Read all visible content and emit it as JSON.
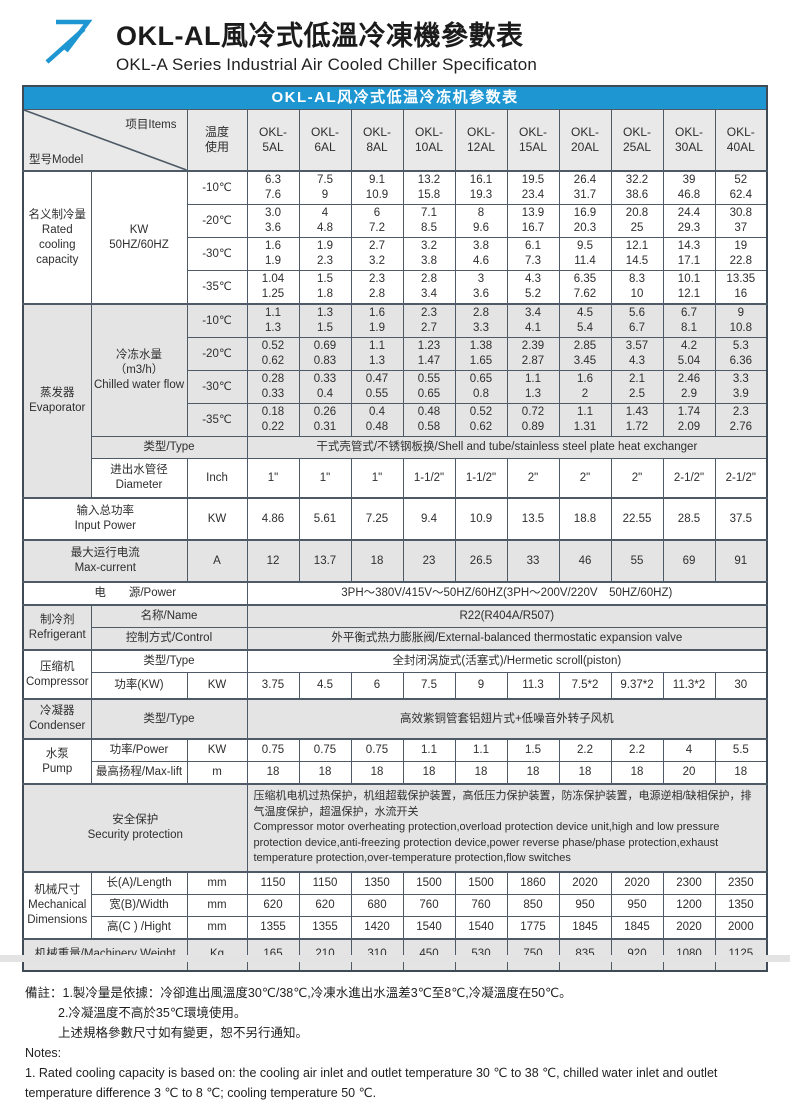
{
  "colors": {
    "accent_blue": "#1e96d2",
    "row_gray": "#e4e4e4",
    "border": "#4e5a66"
  },
  "masthead": {
    "title_zh": "OKL-AL風冷式低溫冷凍機參數表",
    "title_en": "OKL-A Series Industrial Air Cooled Chiller Specificaton"
  },
  "table": {
    "bar_title": "OKL-AL风冷式低温冷冻机参数表",
    "corner_model": "型号Model",
    "corner_items": "项目Items",
    "temp_usage": "温度\n使用",
    "models": [
      "OKL-\n5AL",
      "OKL-\n6AL",
      "OKL-\n8AL",
      "OKL-\n10AL",
      "OKL-\n12AL",
      "OKL-\n15AL",
      "OKL-\n20AL",
      "OKL-\n25AL",
      "OKL-\n30AL",
      "OKL-\n40AL"
    ],
    "cooling": {
      "label": "名义制冷量\nRated\ncooling\ncapacity",
      "unit_label": "KW\n50HZ/60HZ",
      "rows": [
        {
          "temp": "-10℃",
          "values": [
            "6.3\n7.6",
            "7.5\n9",
            "9.1\n10.9",
            "13.2\n15.8",
            "16.1\n19.3",
            "19.5\n23.4",
            "26.4\n31.7",
            "32.2\n38.6",
            "39\n46.8",
            "52\n62.4"
          ]
        },
        {
          "temp": "-20℃",
          "values": [
            "3.0\n3.6",
            "4\n4.8",
            "6\n7.2",
            "7.1\n8.5",
            "8\n9.6",
            "13.9\n16.7",
            "16.9\n20.3",
            "20.8\n25",
            "24.4\n29.3",
            "30.8\n37"
          ]
        },
        {
          "temp": "-30℃",
          "values": [
            "1.6\n1.9",
            "1.9\n2.3",
            "2.7\n3.2",
            "3.2\n3.8",
            "3.8\n4.6",
            "6.1\n7.3",
            "9.5\n11.4",
            "12.1\n14.5",
            "14.3\n17.1",
            "19\n22.8"
          ]
        },
        {
          "temp": "-35℃",
          "values": [
            "1.04\n1.25",
            "1.5\n1.8",
            "2.3\n2.8",
            "2.8\n3.4",
            "3\n3.6",
            "4.3\n5.2",
            "6.35\n7.62",
            "8.3\n10",
            "10.1\n12.1",
            "13.35\n16"
          ]
        }
      ]
    },
    "evaporator": {
      "label": "蒸发器\nEvaporator",
      "flow_label": "冷冻水量（m3/h）\nChilled water flow",
      "rows": [
        {
          "temp": "-10℃",
          "values": [
            "1.1\n1.3",
            "1.3\n1.5",
            "1.6\n1.9",
            "2.3\n2.7",
            "2.8\n3.3",
            "3.4\n4.1",
            "4.5\n5.4",
            "5.6\n6.7",
            "6.7\n8.1",
            "9\n10.8"
          ]
        },
        {
          "temp": "-20℃",
          "values": [
            "0.52\n0.62",
            "0.69\n0.83",
            "1.1\n1.3",
            "1.23\n1.47",
            "1.38\n1.65",
            "2.39\n2.87",
            "2.85\n3.45",
            "3.57\n4.3",
            "4.2\n5.04",
            "5.3\n6.36"
          ]
        },
        {
          "temp": "-30℃",
          "values": [
            "0.28\n0.33",
            "0.33\n0.4",
            "0.47\n0.55",
            "0.55\n0.65",
            "0.65\n0.8",
            "1.1\n1.3",
            "1.6\n2",
            "2.1\n2.5",
            "2.46\n2.9",
            "3.3\n3.9"
          ]
        },
        {
          "temp": "-35℃",
          "values": [
            "0.18\n0.22",
            "0.26\n0.31",
            "0.4\n0.48",
            "0.48\n0.58",
            "0.52\n0.62",
            "0.72\n0.89",
            "1.1\n1.31",
            "1.43\n1.72",
            "1.74\n2.09",
            "2.3\n2.76"
          ]
        }
      ],
      "type_label": "类型/Type",
      "type_value": "干式壳管式/不锈钢板换/Shell and tube/stainless steel plate heat exchanger",
      "diameter": {
        "label": "进出水管径\nDiameter",
        "unit": "Inch",
        "values": [
          "1\"",
          "1\"",
          "1\"",
          "1-1/2\"",
          "1-1/2\"",
          "2\"",
          "2\"",
          "2\"",
          "2-1/2\"",
          "2-1/2\""
        ]
      }
    },
    "input_power": {
      "label": "输入总功率\nInput Power",
      "unit": "KW",
      "values": [
        "4.86",
        "5.61",
        "7.25",
        "9.4",
        "10.9",
        "13.5",
        "18.8",
        "22.55",
        "28.5",
        "37.5"
      ]
    },
    "max_current": {
      "label": "最大运行电流\nMax-current",
      "unit": "A",
      "values": [
        "12",
        "13.7",
        "18",
        "23",
        "26.5",
        "33",
        "46",
        "55",
        "69",
        "91"
      ]
    },
    "power": {
      "label": "电　　源/Power",
      "value": "3PH～380V/415V～50HZ/60HZ(3PH～200V/220V　50HZ/60HZ)"
    },
    "refrigerant": {
      "label": "制冷剂\nRefrigerant",
      "name_label": "名称/Name",
      "name_value": "R22(R404A/R507)",
      "control_label": "控制方式/Control",
      "control_value": "外平衡式热力膨胀阀/External-balanced thermostatic expansion valve"
    },
    "compressor": {
      "label": "压缩机\nCompressor",
      "type_label": "类型/Type",
      "type_value": "全封闭涡旋式(活塞式)/Hermetic scroll(piston)",
      "power_label": "功率(KW)",
      "power_unit": "KW",
      "power_values": [
        "3.75",
        "4.5",
        "6",
        "7.5",
        "9",
        "11.3",
        "7.5*2",
        "9.37*2",
        "11.3*2",
        "30"
      ]
    },
    "condenser": {
      "label": "冷凝器\nCondenser",
      "type_label": "类型/Type",
      "type_value": "高效紫铜管套铝翅片式+低噪音外转子风机"
    },
    "pump": {
      "label": "水泵\nPump",
      "power_label": "功率/Power",
      "power_unit": "KW",
      "power_values": [
        "0.75",
        "0.75",
        "0.75",
        "1.1",
        "1.1",
        "1.5",
        "2.2",
        "2.2",
        "4",
        "5.5"
      ],
      "lift_label": "最高扬程/Max-lift",
      "lift_unit": "m",
      "lift_values": [
        "18",
        "18",
        "18",
        "18",
        "18",
        "18",
        "18",
        "18",
        "20",
        "18"
      ]
    },
    "security": {
      "label": "安全保护\nSecurity protection",
      "text_zh": "压缩机电机过热保护，机组超载保护装置，高低压力保护装置，防冻保护装置，电源逆相/缺相保护，排气温度保护，超温保护，水流开关",
      "text_en": " Compressor motor overheating protection,overload protection device unit,high and low pressure protection device,anti-freezing protection device,power reverse phase/phase protection,exhaust temperature protection,over-temperature protection,flow switches"
    },
    "dimensions": {
      "label": "机械尺寸\nMechanical\nDimensions",
      "rows": [
        {
          "label": "长(A)/Length",
          "unit": "mm",
          "values": [
            "1150",
            "1150",
            "1350",
            "1500",
            "1500",
            "1860",
            "2020",
            "2020",
            "2300",
            "2350"
          ]
        },
        {
          "label": "宽(B)/Width",
          "unit": "mm",
          "values": [
            "620",
            "620",
            "680",
            "760",
            "760",
            "850",
            "950",
            "950",
            "1200",
            "1350"
          ]
        },
        {
          "label": "高(C ) /Hight",
          "unit": "mm",
          "values": [
            "1355",
            "1355",
            "1420",
            "1540",
            "1540",
            "1775",
            "1845",
            "1845",
            "2020",
            "2000"
          ]
        }
      ]
    },
    "weight": {
      "label": "机械重量/Machinery Weight",
      "unit": "Kg",
      "values": [
        "165",
        "210",
        "310",
        "450",
        "530",
        "750",
        "835",
        "920",
        "1080",
        "1125"
      ]
    }
  },
  "notes": {
    "zh1": "備註：1.製冷量是依據：冷卻進出風溫度30℃/38℃,冷凍水進出水溫差3℃至8℃,冷凝溫度在50℃。",
    "zh2": "2.冷凝溫度不高於35℃環境使用。",
    "zh3": "上述規格參數尺寸如有變更，恕不另行通知。",
    "en_label": "Notes:",
    "en1": "1. Rated cooling capacity is based on: the cooling air inlet and outlet temperature 30 ℃ to 38 ℃, chilled water inlet and outlet temperature difference 3 ℃ to 8 ℃; cooling temperature 50 ℃."
  }
}
